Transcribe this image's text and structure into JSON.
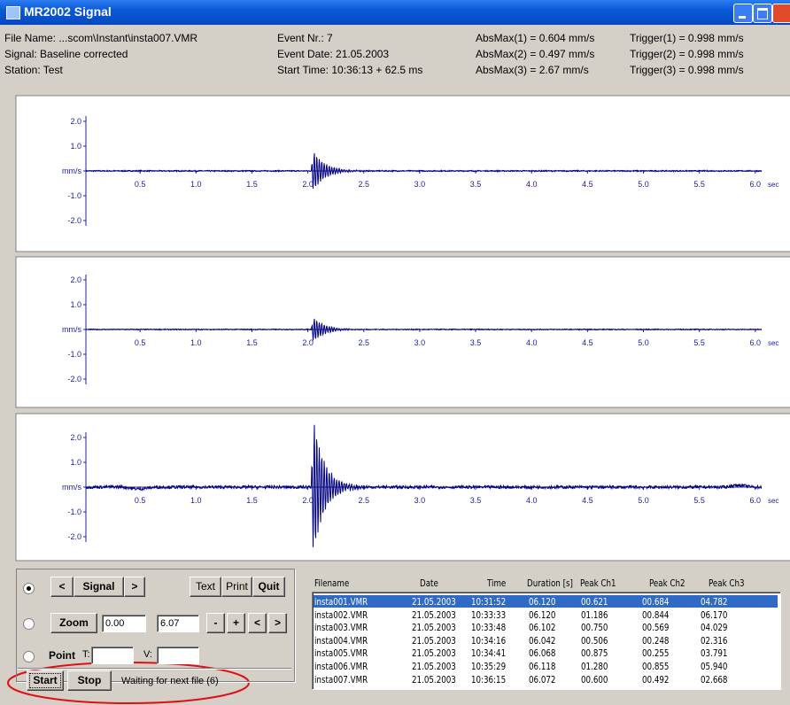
{
  "window": {
    "title": "MR2002 Signal"
  },
  "header": {
    "columns": [
      [
        "File Name: ...scom\\Instant\\insta007.VMR",
        "Signal: Baseline corrected",
        "Station: Test"
      ],
      [
        "Event Nr.: 7",
        "Event Date: 21.05.2003",
        "Start Time: 10:36:13 + 62.5 ms"
      ],
      [
        "AbsMax(1) = 0.604 mm/s",
        "AbsMax(2) = 0.497 mm/s",
        "AbsMax(3) = 2.67 mm/s"
      ],
      [
        "Trigger(1) = 0.998  mm/s",
        "Trigger(2) = 0.998  mm/s",
        "Trigger(3) = 0.998  mm/s"
      ]
    ]
  },
  "axis": {
    "y_labels": [
      "2.0",
      "1.0",
      "mm/s",
      "-1.0",
      "-2.0"
    ],
    "x_labels": [
      "0.5",
      "1.0",
      "1.5",
      "2.0",
      "2.5",
      "3.0",
      "3.5",
      "4.0",
      "4.5",
      "5.0",
      "5.5",
      "6.0"
    ],
    "x_unit": "sec"
  },
  "controls": {
    "signal_buttons": [
      "<",
      "Signal",
      ">"
    ],
    "action_buttons": [
      "Text",
      "Print",
      "Quit"
    ],
    "zoom": {
      "button": "Zoom",
      "from": "0.00",
      "to": "6.07",
      "nav": [
        "-",
        "+",
        "<",
        ">"
      ]
    },
    "point": {
      "label": "Point",
      "t": "T:",
      "v": "V:"
    },
    "start": "Start",
    "stop": "Stop",
    "status": "Waiting for next file (6)"
  },
  "table": {
    "columns": [
      "Filename",
      "Date",
      "Time",
      "Duration [s]",
      "Peak Ch1",
      "Peak Ch2",
      "Peak Ch3"
    ],
    "rows": [
      [
        "insta001.VMR",
        "21.05.2003",
        "10:31:52",
        "06.120",
        "00.621",
        "00.684",
        "04.782"
      ],
      [
        "insta002.VMR",
        "21.05.2003",
        "10:33:33",
        "06.120",
        "01.186",
        "00.844",
        "06.170"
      ],
      [
        "insta003.VMR",
        "21.05.2003",
        "10:33:48",
        "06.102",
        "00.750",
        "00.569",
        "04.029"
      ],
      [
        "insta004.VMR",
        "21.05.2003",
        "10:34:16",
        "06.042",
        "00.506",
        "00.248",
        "02.316"
      ],
      [
        "insta005.VMR",
        "21.05.2003",
        "10:34:41",
        "06.068",
        "00.875",
        "00.255",
        "03.791"
      ],
      [
        "insta006.VMR",
        "21.05.2003",
        "10:35:29",
        "06.118",
        "01.280",
        "00.855",
        "05.940"
      ],
      [
        "insta007.VMR",
        "21.05.2003",
        "10:36:15",
        "06.072",
        "00.600",
        "00.492",
        "02.668"
      ]
    ]
  }
}
